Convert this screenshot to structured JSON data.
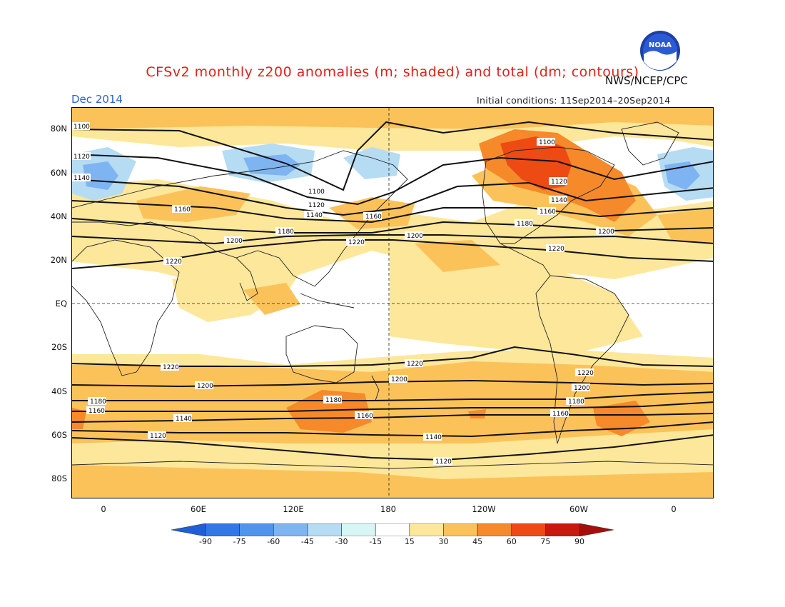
{
  "header": {
    "title": "CFSv2 monthly z200 anomalies (m; shaded) and total (dm; contours)",
    "credit": "NWS/NCEP/CPC",
    "logo_text": "NOAA",
    "month": "Dec 2014",
    "initial_conditions": "Initial conditions: 11Sep2014–20Sep2014"
  },
  "axes": {
    "lat_labels": [
      "80N",
      "60N",
      "40N",
      "20N",
      "EQ",
      "20S",
      "40S",
      "60S",
      "80S"
    ],
    "lon_labels": [
      "0",
      "60E",
      "120E",
      "180",
      "120W",
      "60W",
      "0"
    ]
  },
  "contours": [
    {
      "value": "1100"
    },
    {
      "value": "1120"
    },
    {
      "value": "1140"
    },
    {
      "value": "1160"
    },
    {
      "value": "1180"
    },
    {
      "value": "1200"
    },
    {
      "value": "1220"
    }
  ],
  "colorbar": {
    "labels": [
      "-90",
      "-75",
      "-60",
      "-45",
      "-30",
      "-15",
      "15",
      "30",
      "45",
      "60",
      "75",
      "90"
    ],
    "colors": [
      "#1e5fd8",
      "#2f78e6",
      "#4f95ee",
      "#7fb4f2",
      "#b5dcf3",
      "#d9f6f7",
      "#ffffff",
      "#fde79a",
      "#fcc25a",
      "#f6892a",
      "#ee4a14",
      "#c7190c",
      "#a50f0a"
    ]
  },
  "colors": {
    "title": "#e0201b",
    "month": "#2a62d8",
    "pos15": "#fde79a",
    "pos30": "#fcc25a",
    "pos45": "#f6892a",
    "pos60": "#ee4a14",
    "neg15": "#b5dcf3",
    "neg30": "#7fb4f2"
  }
}
